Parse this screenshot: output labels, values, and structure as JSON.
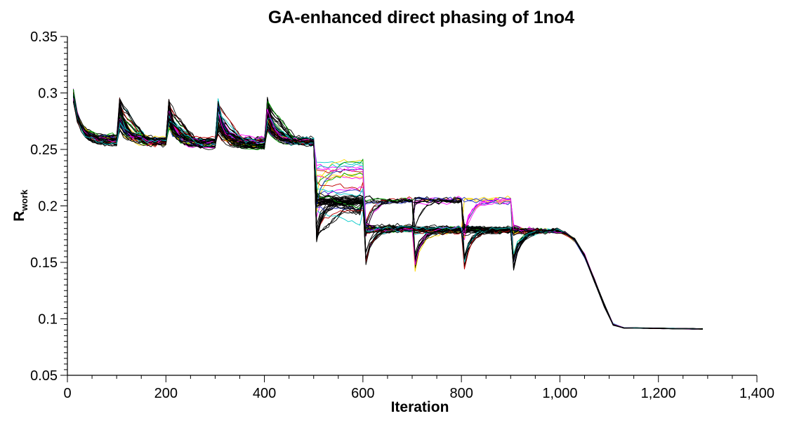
{
  "chart_data": {
    "type": "line",
    "title": "GA-enhanced direct phasing of 1no4",
    "xlabel": "Iteration",
    "ylabel": {
      "main": "R",
      "subscript": "work"
    },
    "xlim": [
      0,
      1400
    ],
    "ylim": [
      0.05,
      0.35
    ],
    "x_ticks": [
      0,
      200,
      400,
      600,
      800,
      1000,
      1200,
      1400
    ],
    "x_tick_labels": [
      "0",
      "200",
      "400",
      "600",
      "800",
      "1,000",
      "1,200",
      "1,400"
    ],
    "y_ticks": [
      0.05,
      0.1,
      0.15,
      0.2,
      0.25,
      0.3,
      0.35
    ],
    "y_tick_labels": [
      "0.05",
      "0.1",
      "0.15",
      "0.2",
      "0.25",
      "0.3",
      "0.35"
    ],
    "grid": false,
    "legend": "none",
    "trace_count": 60,
    "trace_x_range": [
      10,
      1290
    ],
    "key_points": [
      {
        "x": 10,
        "y": 0.3
      },
      {
        "x": 100,
        "y": 0.263
      },
      {
        "x": 400,
        "y": 0.258
      },
      {
        "x": 600,
        "y": 0.203
      },
      {
        "x": 900,
        "y": 0.205
      },
      {
        "x": 1000,
        "y": 0.178
      },
      {
        "x": 1110,
        "y": 0.094
      },
      {
        "x": 1290,
        "y": 0.091
      }
    ],
    "series_colors": [
      "#000000",
      "#ff00ff",
      "#00c8c8",
      "#ffd800",
      "#00a000",
      "#2030c0",
      "#c00000"
    ]
  }
}
